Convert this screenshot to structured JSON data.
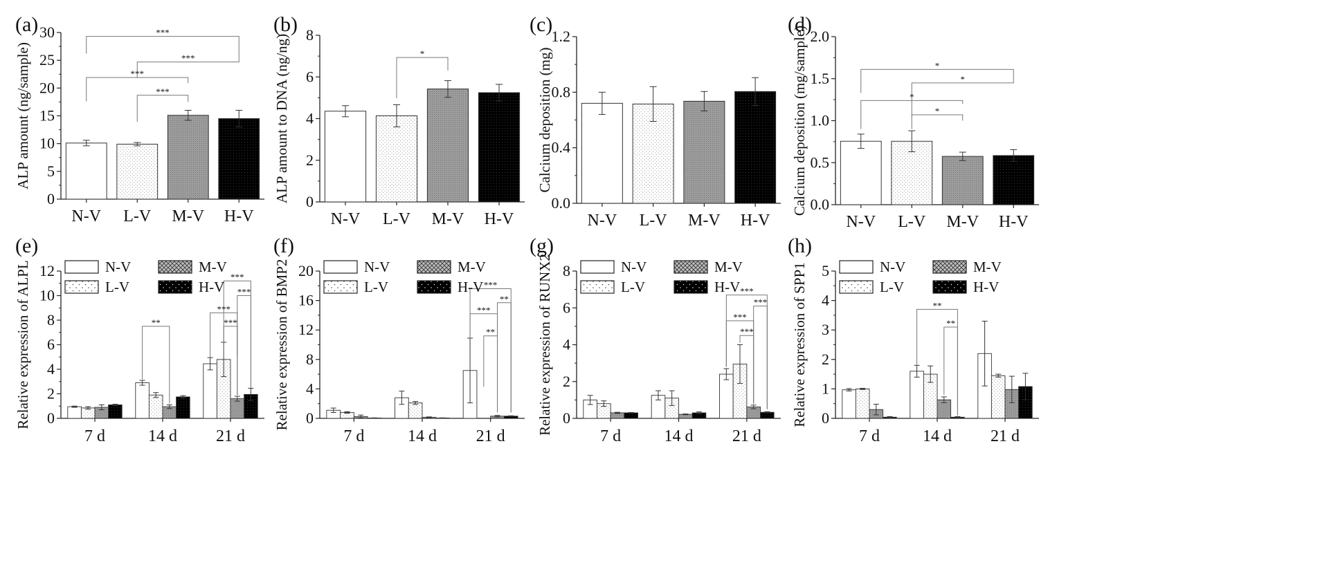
{
  "colors": {
    "axis": "#222222",
    "N-V": "#ffffff",
    "L-V": "#f3f3f3",
    "M-V": "#9a9a9a",
    "H-V": "#000000",
    "sig": "#777777"
  },
  "chart_data": [
    {
      "id": "a",
      "panel_label": "(a)",
      "type": "bar",
      "categories": [
        "N-V",
        "L-V",
        "M-V",
        "H-V"
      ],
      "values": [
        10.1,
        9.9,
        15.1,
        14.5
      ],
      "errors": [
        0.5,
        0.3,
        0.9,
        1.5
      ],
      "ylabel": "ALP amount (ng/sample)",
      "ylim": [
        0,
        30
      ],
      "yticks": [
        "0",
        "5",
        "10",
        "15",
        "20",
        "25",
        "30"
      ],
      "significance": [
        {
          "from": 0,
          "to": 3,
          "label": "***",
          "level": 29.3,
          "y1": 26.2,
          "y2": 25.5
        },
        {
          "from": 1,
          "to": 3,
          "label": "***",
          "level": 24.7,
          "y1": 21.8,
          "y2": 25.5
        },
        {
          "from": 0,
          "to": 2,
          "label": "***",
          "level": 21.9,
          "y1": 17.6,
          "y2": 20.9
        },
        {
          "from": 1,
          "to": 2,
          "label": "***",
          "level": 18.7,
          "y1": 13.9,
          "y2": 17.5
        }
      ]
    },
    {
      "id": "b",
      "panel_label": "(b)",
      "type": "bar",
      "categories": [
        "N-V",
        "L-V",
        "M-V",
        "H-V"
      ],
      "values": [
        4.9,
        4.65,
        6.1,
        5.9
      ],
      "errors": [
        0.3,
        0.6,
        0.45,
        0.45
      ],
      "ylabel": "ALP amount to DNA (ng/ng)",
      "ylim": [
        0,
        9
      ],
      "yticks": [
        "0",
        "2",
        "4",
        "6",
        "8"
      ],
      "significance": [
        {
          "from": 1,
          "to": 2,
          "label": "*",
          "level": 7.8,
          "y1": 5.6,
          "y2": 7.1
        }
      ]
    },
    {
      "id": "c",
      "panel_label": "(c)",
      "type": "bar",
      "categories": [
        "N-V",
        "L-V",
        "M-V",
        "H-V"
      ],
      "values": [
        0.72,
        0.715,
        0.735,
        0.805
      ],
      "errors": [
        0.08,
        0.125,
        0.07,
        0.1
      ],
      "ylabel": "Calcium deposition (mg)",
      "ylim": [
        0,
        1.2
      ],
      "yticks": [
        "0.0",
        "0.4",
        "0.8",
        "1.2"
      ],
      "significance": []
    },
    {
      "id": "d",
      "panel_label": "(d)",
      "type": "bar",
      "categories": [
        "N-V",
        "L-V",
        "M-V",
        "H-V"
      ],
      "values": [
        0.755,
        0.755,
        0.575,
        0.585
      ],
      "errors": [
        0.085,
        0.125,
        0.05,
        0.07
      ],
      "ylabel": "Calcium deposition (mg/sample)",
      "ylim": [
        0,
        2.0
      ],
      "yticks": [
        "0.0",
        "0.5",
        "1.0",
        "1.5",
        "2.0"
      ],
      "significance": [
        {
          "from": 0,
          "to": 3,
          "label": "*",
          "level": 1.61,
          "y1": 1.33,
          "y2": 1.5
        },
        {
          "from": 1,
          "to": 3,
          "label": "*",
          "level": 1.45,
          "y1": 1.05,
          "y2": 1.5
        },
        {
          "from": 0,
          "to": 2,
          "label": "*",
          "level": 1.24,
          "y1": 0.9,
          "y2": 1.2
        },
        {
          "from": 1,
          "to": 2,
          "label": "*",
          "level": 1.07,
          "y1": 0.9,
          "y2": 1.0
        }
      ]
    },
    {
      "id": "e",
      "panel_label": "(e)",
      "type": "bar",
      "categories": [
        "7 d",
        "14 d",
        "21 d"
      ],
      "ylabel": "Relative expression of  ALPL",
      "ylim": [
        0,
        12
      ],
      "yticks": [
        "0",
        "2",
        "4",
        "6",
        "8",
        "10",
        "12"
      ],
      "series": [
        {
          "name": "N-V",
          "values": [
            0.95,
            2.9,
            4.45
          ],
          "errors": [
            0.05,
            0.2,
            0.5
          ]
        },
        {
          "name": "L-V",
          "values": [
            0.85,
            1.9,
            4.8
          ],
          "errors": [
            0.1,
            0.2,
            1.4
          ]
        },
        {
          "name": "M-V",
          "values": [
            0.9,
            0.95,
            1.6
          ],
          "errors": [
            0.2,
            0.15,
            0.2
          ]
        },
        {
          "name": "H-V",
          "values": [
            1.1,
            1.75,
            1.95
          ],
          "errors": [
            0.05,
            0.1,
            0.5
          ]
        }
      ],
      "significance": [
        {
          "group": 1,
          "from": 0,
          "to": 2,
          "label": "**",
          "level": 7.5,
          "y1": 3.2,
          "y2": 1.2
        },
        {
          "group": 2,
          "from": 1,
          "to": 3,
          "label": "***",
          "level": 11.2,
          "y1": 4.9,
          "y2": 2.5
        },
        {
          "group": 2,
          "from": 2,
          "to": 3,
          "label": "***",
          "level": 10.0,
          "y1": 5.0,
          "y2": 2.5
        },
        {
          "group": 2,
          "from": 0,
          "to": 2,
          "label": "***",
          "level": 8.6,
          "y1": 5.0,
          "y2": 1.9
        },
        {
          "group": 2,
          "from": 1,
          "to": 2,
          "label": "***",
          "level": 7.5,
          "y1": 6.3,
          "y2": 1.9
        }
      ]
    },
    {
      "id": "f",
      "panel_label": "(f)",
      "type": "bar",
      "categories": [
        "7 d",
        "14 d",
        "21 d"
      ],
      "ylabel": "Relative expression of  BMP2",
      "ylim": [
        0,
        20
      ],
      "yticks": [
        "0",
        "4",
        "8",
        "12",
        "16",
        "20"
      ],
      "series": [
        {
          "name": "N-V",
          "values": [
            1.1,
            2.8,
            6.5
          ],
          "errors": [
            0.3,
            0.9,
            4.4
          ]
        },
        {
          "name": "L-V",
          "values": [
            0.8,
            2.1,
            0
          ],
          "errors": [
            0.1,
            0.2,
            0
          ]
        },
        {
          "name": "M-V",
          "values": [
            0.25,
            0.15,
            0.3
          ],
          "errors": [
            0.2,
            0.05,
            0.1
          ]
        },
        {
          "name": "H-V",
          "values": [
            0.05,
            0.05,
            0.3
          ],
          "errors": [
            0.02,
            0.02,
            0.05
          ]
        }
      ],
      "significance": [
        {
          "group": 2,
          "from": 0,
          "to": 3,
          "label": "***",
          "level": 17.6,
          "y1": 11.0,
          "y2": 0.8
        },
        {
          "group": 2,
          "from": 2,
          "to": 3,
          "label": "**",
          "level": 15.7,
          "y1": 0.8,
          "y2": 0.8
        },
        {
          "group": 2,
          "from": 0,
          "to": 2,
          "label": "***",
          "level": 14.2,
          "y1": 11.0,
          "y2": 0.8
        },
        {
          "group": 2,
          "from": 1,
          "to": 2,
          "label": "**",
          "level": 11.2,
          "y1": 4.3,
          "y2": 0.8
        }
      ]
    },
    {
      "id": "g",
      "panel_label": "(g)",
      "type": "bar",
      "categories": [
        "7 d",
        "14 d",
        "21 d"
      ],
      "ylabel": "Relative expression of  RUNX2",
      "ylim": [
        0,
        8
      ],
      "yticks": [
        "0",
        "2",
        "4",
        "6",
        "8"
      ],
      "series": [
        {
          "name": "N-V",
          "values": [
            1.0,
            1.25,
            2.4
          ],
          "errors": [
            0.25,
            0.25,
            0.3
          ]
        },
        {
          "name": "L-V",
          "values": [
            0.8,
            1.1,
            2.95
          ],
          "errors": [
            0.15,
            0.4,
            1.05
          ]
        },
        {
          "name": "M-V",
          "values": [
            0.3,
            0.22,
            0.62
          ],
          "errors": [
            0.03,
            0.02,
            0.1
          ]
        },
        {
          "name": "H-V",
          "values": [
            0.3,
            0.3,
            0.33
          ],
          "errors": [
            0.02,
            0.05,
            0.03
          ]
        }
      ],
      "significance": [
        {
          "group": 2,
          "from": 0,
          "to": 3,
          "label": "***",
          "level": 6.7,
          "y1": 2.8,
          "y2": 0.5
        },
        {
          "group": 2,
          "from": 2,
          "to": 3,
          "label": "***",
          "level": 6.1,
          "y1": 0.8,
          "y2": 0.5
        },
        {
          "group": 2,
          "from": 0,
          "to": 2,
          "label": "***",
          "level": 5.3,
          "y1": 2.8,
          "y2": 0.8
        },
        {
          "group": 2,
          "from": 1,
          "to": 2,
          "label": "***",
          "level": 4.5,
          "y1": 4.1,
          "y2": 0.8
        }
      ]
    },
    {
      "id": "h",
      "panel_label": "(h)",
      "type": "bar",
      "categories": [
        "7 d",
        "14 d",
        "21 d"
      ],
      "ylabel": "Relative expression of  SPP1",
      "ylim": [
        0,
        5
      ],
      "yticks": [
        "0",
        "1",
        "2",
        "3",
        "4",
        "5"
      ],
      "series": [
        {
          "name": "N-V",
          "values": [
            0.97,
            1.6,
            2.2
          ],
          "errors": [
            0.04,
            0.2,
            1.1
          ]
        },
        {
          "name": "L-V",
          "values": [
            1.0,
            1.5,
            1.45
          ],
          "errors": [
            0.02,
            0.28,
            0.05
          ]
        },
        {
          "name": "M-V",
          "values": [
            0.3,
            0.63,
            0.98
          ],
          "errors": [
            0.18,
            0.1,
            0.45
          ]
        },
        {
          "name": "H-V",
          "values": [
            0.04,
            0.04,
            1.08
          ],
          "errors": [
            0.02,
            0.02,
            0.45
          ]
        }
      ],
      "significance": [
        {
          "group": 1,
          "from": 0,
          "to": 3,
          "label": "**",
          "level": 3.7,
          "y1": 1.8,
          "y2": 0.1
        },
        {
          "group": 1,
          "from": 2,
          "to": 3,
          "label": "**",
          "level": 3.1,
          "y1": 0.8,
          "y2": 0.1
        }
      ]
    }
  ]
}
